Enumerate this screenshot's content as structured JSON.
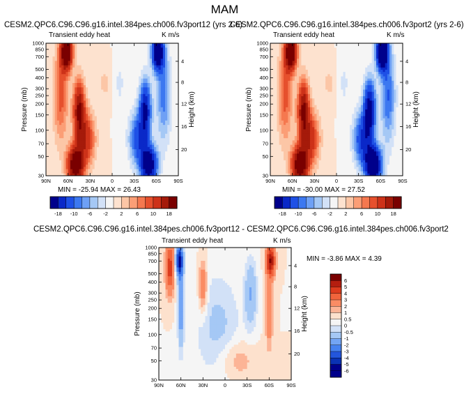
{
  "figure_title": "MAM",
  "chart_data": [
    {
      "type": "heatmap",
      "title": "CESM2.QPC6.C96.C96.g16.intel.384pes.ch006.fv3port12 (yrs 2-6)",
      "left_label": "Transient eddy heat",
      "right_label": "K m/s",
      "ylabel": "Pressure (mb)",
      "ylabel_right": "Height (km)",
      "x_ticks": [
        "90N",
        "60N",
        "30N",
        "0",
        "30S",
        "60S",
        "90S"
      ],
      "x_range": [
        90,
        -90
      ],
      "y_ticks": [
        "30",
        "50",
        "70",
        "100",
        "150",
        "200",
        "250",
        "300",
        "400",
        "500",
        "700",
        "850",
        "1000"
      ],
      "y_range_mb": [
        1000,
        30
      ],
      "height_ticks_km": [
        "4",
        "8",
        "12",
        "16",
        "20"
      ],
      "min_max_text": "MIN = -25.94  MAX = 26.43",
      "min": -25.94,
      "max": 26.43,
      "colorbar_levels": [
        "-18",
        "-10",
        "-6",
        "-2",
        "2",
        "6",
        "10",
        "18"
      ]
    },
    {
      "type": "heatmap",
      "title": "CESM2.QPC6.C96.C96.g16.intel.384pes.ch006.fv3port2 (yrs 2-6)",
      "left_label": "Transient eddy heat",
      "right_label": "K m/s",
      "ylabel": "Pressure (mb)",
      "ylabel_right": "Height (km)",
      "x_ticks": [
        "90N",
        "60N",
        "30N",
        "0",
        "30S",
        "60S",
        "90S"
      ],
      "x_range": [
        90,
        -90
      ],
      "y_ticks": [
        "30",
        "50",
        "70",
        "100",
        "150",
        "200",
        "250",
        "300",
        "400",
        "500",
        "700",
        "850",
        "1000"
      ],
      "y_range_mb": [
        1000,
        30
      ],
      "height_ticks_km": [
        "4",
        "8",
        "12",
        "16",
        "20"
      ],
      "min_max_text": "MIN = -30.00  MAX = 27.52",
      "min": -30.0,
      "max": 27.52,
      "colorbar_levels": [
        "-18",
        "-10",
        "-6",
        "-2",
        "2",
        "6",
        "10",
        "18"
      ]
    },
    {
      "type": "heatmap",
      "title": "CESM2.QPC6.C96.C96.g16.intel.384pes.ch006.fv3port12 - CESM2.QPC6.C96.C96.g16.intel.384pes.ch006.fv3port2",
      "left_label": "Transient eddy heat",
      "right_label": "K m/s",
      "ylabel": "Pressure (mb)",
      "ylabel_right": "Height (km)",
      "x_ticks": [
        "90N",
        "60N",
        "30N",
        "0",
        "30S",
        "60S",
        "90S"
      ],
      "x_range": [
        90,
        -90
      ],
      "y_ticks": [
        "30",
        "50",
        "70",
        "100",
        "150",
        "200",
        "250",
        "300",
        "400",
        "500",
        "700",
        "850",
        "1000"
      ],
      "y_range_mb": [
        1000,
        30
      ],
      "height_ticks_km": [
        "4",
        "8",
        "12",
        "16",
        "20"
      ],
      "min_max_text": "MIN =  -3.86  MAX =  4.39",
      "min": -3.86,
      "max": 4.39,
      "colorbar_levels": [
        "6",
        "5",
        "4",
        "3",
        "2",
        "1",
        "0.5",
        "0",
        "-0.5",
        "-1",
        "-2",
        "-3",
        "-4",
        "-5",
        "-6"
      ]
    }
  ],
  "colors": {
    "full_field": [
      "#00008b",
      "#0a28c8",
      "#1e50e6",
      "#3c78f0",
      "#6ea0f5",
      "#a5c8f5",
      "#d2e1f7",
      "#f5f5f5",
      "#fde2cf",
      "#fcc6a6",
      "#fb9e76",
      "#f5784f",
      "#e6502d",
      "#cd3219",
      "#a51a0a",
      "#7a0000"
    ],
    "difference": [
      "#7a0000",
      "#b41e0f",
      "#dc3c1e",
      "#f0643c",
      "#fa8c64",
      "#fcb496",
      "#fde1cd",
      "#f5f5f5",
      "#d2e1f7",
      "#a5c8f5",
      "#73a5f5",
      "#4682f0",
      "#2356dc",
      "#0a32b4",
      "#00008b"
    ]
  }
}
